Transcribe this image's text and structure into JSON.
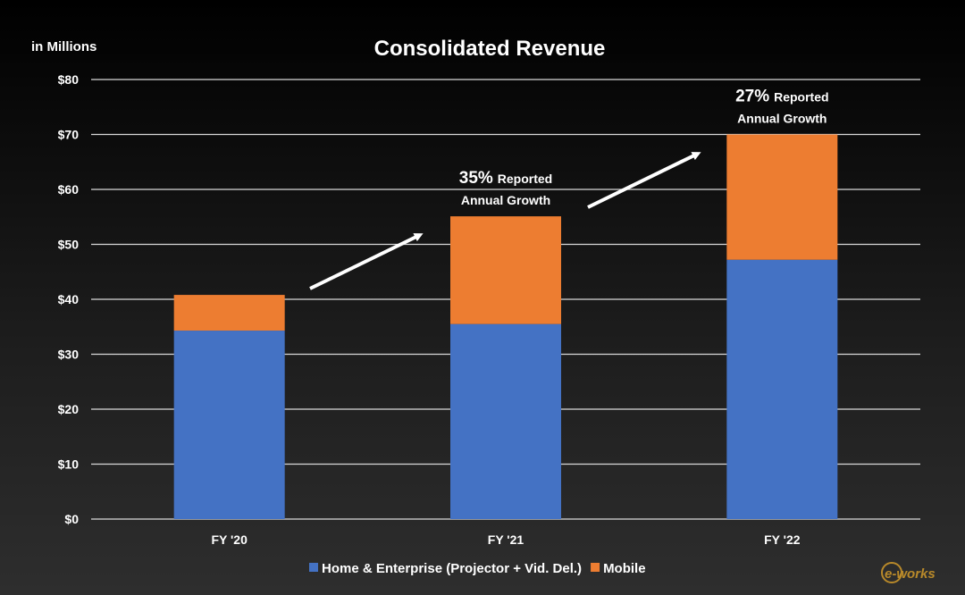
{
  "chart_data": {
    "type": "bar",
    "stacked": true,
    "title": "Consolidated Revenue",
    "unit_label": "in Millions",
    "categories": [
      "FY '20",
      "FY '21",
      "FY '22"
    ],
    "series": [
      {
        "name": "Home & Enterprise (Projector + Vid. Del.)",
        "color": "#4472C4",
        "values": [
          34.3,
          35.5,
          47.2
        ]
      },
      {
        "name": "Mobile",
        "color": "#ED7D31",
        "values": [
          6.5,
          19.6,
          22.8
        ]
      }
    ],
    "ylim": [
      0,
      80
    ],
    "yticks": [
      0,
      10,
      20,
      30,
      40,
      50,
      60,
      70,
      80
    ],
    "ytick_labels": [
      "$0",
      "$10",
      "$20",
      "$30",
      "$40",
      "$50",
      "$60",
      "$70",
      "$80"
    ],
    "grid": true,
    "legend_position": "bottom",
    "annotations": [
      {
        "growth": "35%",
        "line1": "Reported",
        "line2": "Annual Growth",
        "category": "FY '21"
      },
      {
        "growth": "27%",
        "line1": "Reported",
        "line2": "Annual  Growth",
        "category": "FY '22"
      }
    ],
    "watermark": "e-works"
  }
}
